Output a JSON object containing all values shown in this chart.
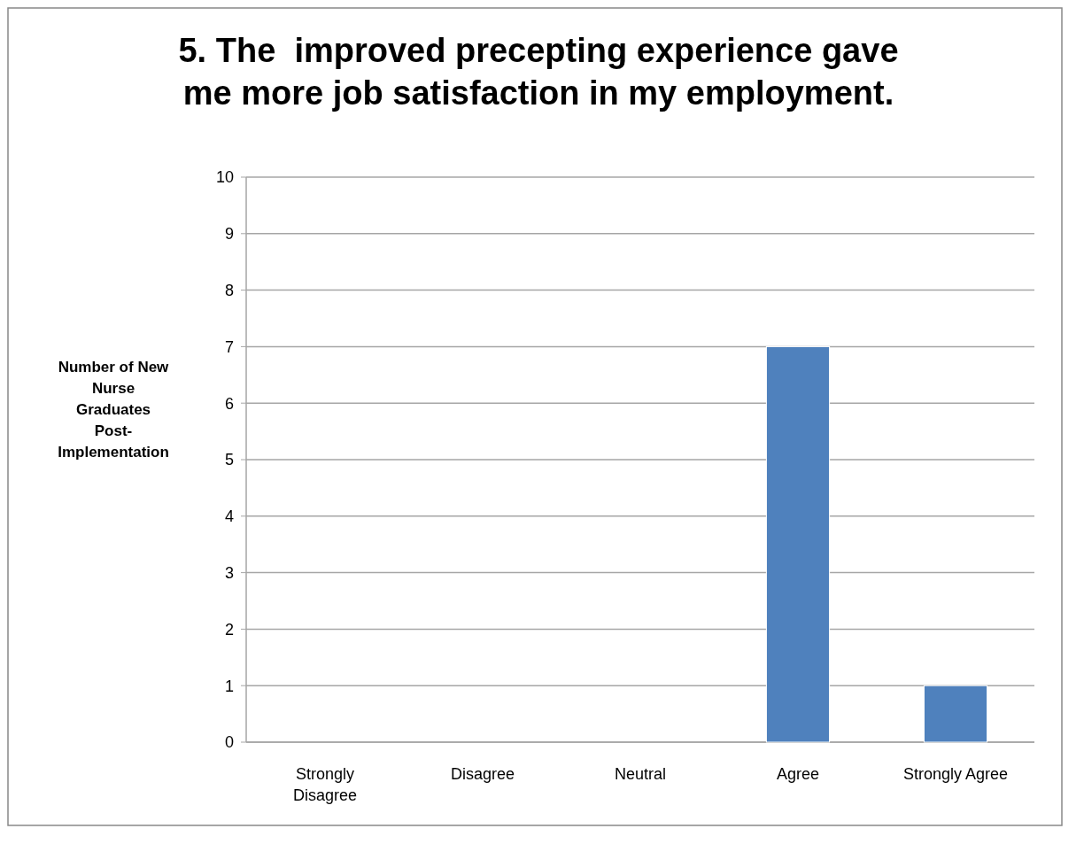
{
  "chart_data": {
    "type": "bar",
    "title": "5. The  improved precepting experience gave me more job satisfaction in my employment.",
    "ylabel": "Number of New Nurse Graduates Post-Implementation",
    "categories": [
      "Strongly Disagree",
      "Disagree",
      "Neutral",
      "Agree",
      "Strongly Agree"
    ],
    "values": [
      0,
      0,
      0,
      7,
      1
    ],
    "color": "#4f81bd",
    "ylim": [
      0,
      10
    ],
    "yticks": [
      0,
      1,
      2,
      3,
      4,
      5,
      6,
      7,
      8,
      9,
      10
    ],
    "grid": "y"
  }
}
